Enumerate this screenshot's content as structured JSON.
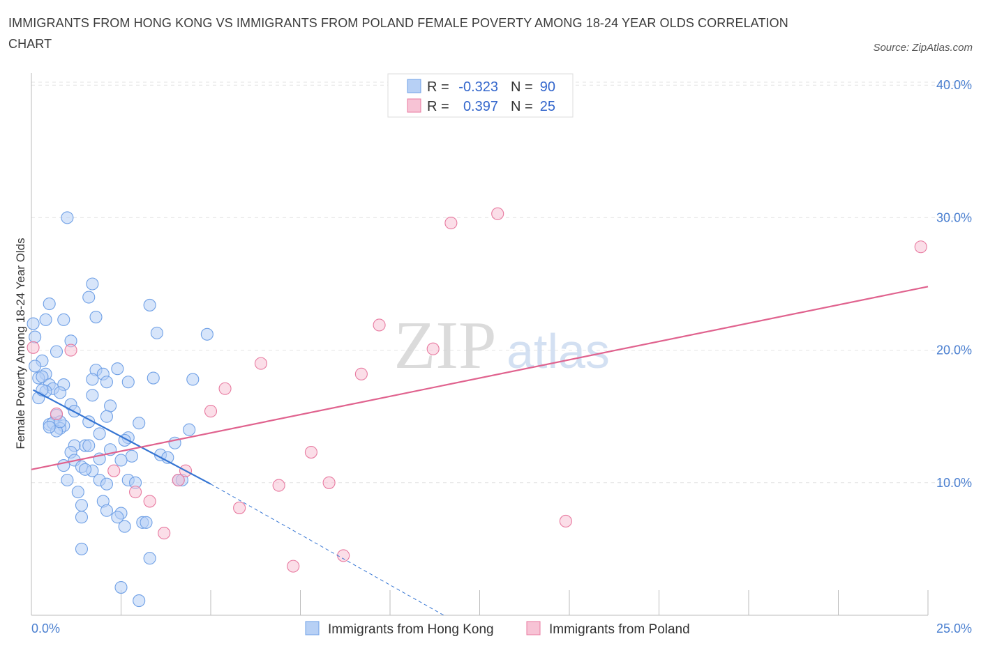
{
  "title": "IMMIGRANTS FROM HONG KONG VS IMMIGRANTS FROM POLAND FEMALE POVERTY AMONG 18-24 YEAR OLDS CORRELATION CHART",
  "source": "Source: ZipAtlas.com",
  "watermark": {
    "zip": "ZIP",
    "atlas": "atlas"
  },
  "legend": {
    "r_label": "R =",
    "n_label": "N =",
    "rows": [
      {
        "r": "-0.323",
        "n": "90"
      },
      {
        "r": "0.397",
        "n": "25"
      }
    ]
  },
  "chart_data": {
    "type": "scatter",
    "title": "IMMIGRANTS FROM HONG KONG VS IMMIGRANTS FROM POLAND FEMALE POVERTY AMONG 18-24 YEAR OLDS CORRELATION CHART",
    "xlabel": "",
    "ylabel": "Female Poverty Among 18-24 Year Olds",
    "xlim": [
      0,
      25
    ],
    "ylim": [
      0,
      40
    ],
    "x_tick_labels": [
      "0.0%",
      "25.0%"
    ],
    "y_ticks": [
      10,
      20,
      30,
      40
    ],
    "y_tick_labels": [
      "10.0%",
      "20.0%",
      "30.0%",
      "40.0%"
    ],
    "legend_position": "top-center",
    "series": [
      {
        "name": "Immigrants from Hong Kong",
        "color": "#6fa0e6",
        "fill": "#b7d0f5",
        "r": -0.323,
        "n": 90,
        "trend": {
          "x": [
            0.05,
            5.0
          ],
          "y": [
            17.0,
            9.9
          ],
          "dashed_to": [
            11.5,
            0.0
          ]
        },
        "points": [
          [
            1.0,
            30.0
          ],
          [
            0.5,
            23.5
          ],
          [
            1.6,
            24.0
          ],
          [
            1.7,
            25.0
          ],
          [
            3.3,
            23.4
          ],
          [
            0.4,
            22.3
          ],
          [
            0.9,
            22.3
          ],
          [
            1.8,
            22.5
          ],
          [
            0.05,
            22.0
          ],
          [
            3.5,
            21.3
          ],
          [
            4.9,
            21.2
          ],
          [
            0.1,
            21.0
          ],
          [
            1.1,
            20.7
          ],
          [
            0.7,
            19.9
          ],
          [
            0.3,
            19.2
          ],
          [
            0.1,
            18.8
          ],
          [
            0.4,
            18.2
          ],
          [
            1.8,
            18.5
          ],
          [
            2.4,
            18.6
          ],
          [
            0.2,
            17.9
          ],
          [
            0.3,
            18.0
          ],
          [
            1.7,
            17.8
          ],
          [
            2.0,
            18.2
          ],
          [
            3.4,
            17.9
          ],
          [
            4.5,
            17.8
          ],
          [
            0.5,
            17.4
          ],
          [
            0.9,
            17.4
          ],
          [
            2.1,
            17.6
          ],
          [
            2.7,
            17.6
          ],
          [
            0.6,
            17.1
          ],
          [
            0.4,
            16.9
          ],
          [
            0.8,
            16.8
          ],
          [
            0.2,
            16.4
          ],
          [
            1.7,
            16.6
          ],
          [
            1.1,
            15.9
          ],
          [
            2.2,
            15.8
          ],
          [
            1.2,
            15.4
          ],
          [
            0.7,
            15.1
          ],
          [
            2.1,
            15.0
          ],
          [
            1.6,
            14.6
          ],
          [
            0.5,
            14.4
          ],
          [
            0.6,
            14.5
          ],
          [
            0.9,
            14.3
          ],
          [
            0.8,
            14.1
          ],
          [
            3.0,
            14.5
          ],
          [
            0.7,
            13.9
          ],
          [
            4.4,
            14.0
          ],
          [
            1.9,
            13.7
          ],
          [
            2.7,
            13.4
          ],
          [
            2.6,
            13.2
          ],
          [
            1.2,
            12.8
          ],
          [
            1.5,
            12.8
          ],
          [
            1.6,
            12.8
          ],
          [
            4.0,
            13.0
          ],
          [
            1.1,
            12.3
          ],
          [
            2.8,
            12.0
          ],
          [
            3.6,
            12.1
          ],
          [
            1.9,
            11.8
          ],
          [
            1.2,
            11.7
          ],
          [
            0.9,
            11.3
          ],
          [
            1.4,
            11.2
          ],
          [
            2.5,
            11.7
          ],
          [
            1.7,
            10.9
          ],
          [
            1.0,
            10.2
          ],
          [
            1.9,
            10.2
          ],
          [
            2.1,
            9.9
          ],
          [
            2.7,
            10.2
          ],
          [
            2.9,
            10.0
          ],
          [
            4.1,
            10.2
          ],
          [
            4.2,
            10.2
          ],
          [
            1.3,
            9.3
          ],
          [
            2.0,
            8.6
          ],
          [
            1.4,
            8.3
          ],
          [
            2.1,
            7.9
          ],
          [
            2.5,
            7.7
          ],
          [
            2.4,
            7.4
          ],
          [
            1.4,
            7.4
          ],
          [
            3.1,
            7.0
          ],
          [
            3.2,
            7.0
          ],
          [
            2.6,
            6.7
          ],
          [
            3.3,
            4.3
          ],
          [
            1.4,
            5.0
          ],
          [
            2.5,
            2.1
          ],
          [
            3.0,
            1.1
          ],
          [
            0.3,
            17.0
          ],
          [
            0.5,
            14.2
          ],
          [
            0.8,
            14.6
          ],
          [
            1.5,
            11.0
          ],
          [
            2.2,
            12.5
          ],
          [
            3.8,
            11.9
          ]
        ]
      },
      {
        "name": "Immigrants from Poland",
        "color": "#e87aa0",
        "fill": "#f7c3d5",
        "r": 0.397,
        "n": 25,
        "trend": {
          "x": [
            0.0,
            25.0
          ],
          "y": [
            11.0,
            24.8
          ]
        },
        "points": [
          [
            0.05,
            20.2
          ],
          [
            1.1,
            20.0
          ],
          [
            0.7,
            15.2
          ],
          [
            2.3,
            10.9
          ],
          [
            2.9,
            9.3
          ],
          [
            3.3,
            8.6
          ],
          [
            3.7,
            6.2
          ],
          [
            4.1,
            10.2
          ],
          [
            4.3,
            10.9
          ],
          [
            5.0,
            15.4
          ],
          [
            5.4,
            17.1
          ],
          [
            5.8,
            8.1
          ],
          [
            6.4,
            19.0
          ],
          [
            6.9,
            9.8
          ],
          [
            7.3,
            3.7
          ],
          [
            7.8,
            12.3
          ],
          [
            8.3,
            10.0
          ],
          [
            8.7,
            4.5
          ],
          [
            9.2,
            18.2
          ],
          [
            9.7,
            21.9
          ],
          [
            11.2,
            20.1
          ],
          [
            11.7,
            29.6
          ],
          [
            13.0,
            30.3
          ],
          [
            14.9,
            7.1
          ],
          [
            24.8,
            27.8
          ]
        ]
      }
    ]
  }
}
